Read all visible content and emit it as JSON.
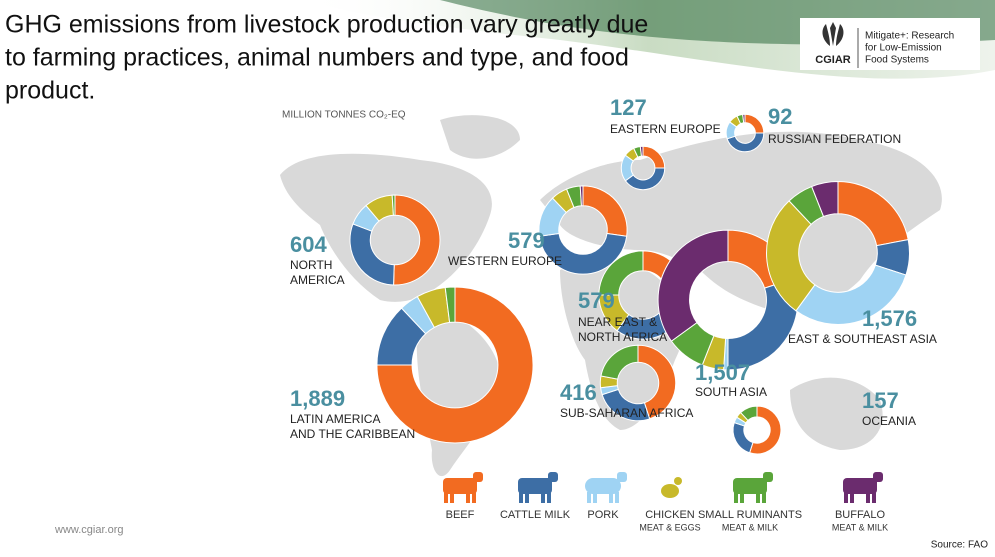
{
  "header": {
    "title_lines": [
      "GHG emissions from livestock production vary greatly due",
      "to farming practices, animal numbers and type, and food",
      "product."
    ],
    "logo_text": "CGIAR",
    "logo_caption_lines": [
      "Mitigate+: Research",
      "for Low-Emission",
      "Food Systems"
    ]
  },
  "chart_data": {
    "type": "donut",
    "unit_label": "MILLION TONNES CO₂-EQ",
    "categories": [
      "NORTH AMERICA",
      "LATIN AMERICA AND THE CARIBBEAN",
      "WESTERN EUROPE",
      "EASTERN EUROPE",
      "RUSSIAN FEDERATION",
      "NEAR EAST & NORTH AFRICA",
      "SUB-SAHARAN AFRICA",
      "SOUTH ASIA",
      "EAST & SOUTHEAST ASIA",
      "OCEANIA"
    ],
    "category_lines": [
      [
        "NORTH",
        "AMERICA"
      ],
      [
        "LATIN AMERICA",
        "AND THE CARIBBEAN"
      ],
      [
        "WESTERN EUROPE"
      ],
      [
        "EASTERN EUROPE"
      ],
      [
        "RUSSIAN FEDERATION"
      ],
      [
        "NEAR EAST &",
        "NORTH AFRICA"
      ],
      [
        "SUB-SAHARAN AFRICA"
      ],
      [
        "SOUTH ASIA"
      ],
      [
        "EAST & SOUTHEAST ASIA"
      ],
      [
        "OCEANIA"
      ]
    ],
    "values": [
      604,
      1889,
      579,
      127,
      92,
      579,
      416,
      1507,
      1576,
      157
    ],
    "value_labels": [
      "604",
      "1,889",
      "579",
      "127",
      "92",
      "579",
      "416",
      "1,507",
      "1,576",
      "157"
    ],
    "series": [
      {
        "name": "BEEF",
        "color": "#f26b21",
        "values": [
          50,
          75,
          27,
          25,
          25,
          25,
          45,
          20,
          22,
          55
        ]
      },
      {
        "name": "CATTLE MILK",
        "color": "#3d6ea5",
        "values": [
          30,
          13,
          45,
          40,
          45,
          35,
          25,
          30,
          8,
          25
        ]
      },
      {
        "name": "PORK",
        "color": "#9fd3f3",
        "values": [
          8,
          4,
          15,
          20,
          15,
          0,
          3,
          1,
          30,
          4
        ]
      },
      {
        "name": "CHICKEN",
        "sublabel": "MEAT & EGGS",
        "color": "#c8b92a",
        "values": [
          10,
          6,
          6,
          8,
          8,
          15,
          5,
          5,
          28,
          4
        ]
      },
      {
        "name": "SMALL RUMINANTS",
        "sublabel": "MEAT & MILK",
        "color": "#5aa53a",
        "values": [
          1,
          2,
          5,
          5,
          5,
          25,
          22,
          9,
          6,
          12
        ]
      },
      {
        "name": "BUFFALO",
        "sublabel": "MEAT & MILK",
        "color": "#6b2c6e",
        "values": [
          0,
          0,
          1,
          2,
          2,
          0,
          0,
          35,
          6,
          0
        ]
      }
    ]
  },
  "footer": {
    "website": "www.cgiar.org",
    "source": "Source: FAO"
  }
}
